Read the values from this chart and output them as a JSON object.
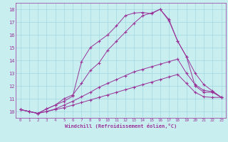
{
  "background_color": "#c8eef0",
  "grid_color": "#a0d8e0",
  "line_color": "#993399",
  "marker": "+",
  "xlim": [
    -0.5,
    23.5
  ],
  "ylim": [
    9.5,
    18.5
  ],
  "xticks": [
    0,
    1,
    2,
    3,
    4,
    5,
    6,
    7,
    8,
    9,
    10,
    11,
    12,
    13,
    14,
    15,
    16,
    17,
    18,
    19,
    20,
    21,
    22,
    23
  ],
  "yticks": [
    10,
    11,
    12,
    13,
    14,
    15,
    16,
    17,
    18
  ],
  "xlabel": "Windchill (Refroidissement éolien,°C)",
  "series": [
    [
      10.15,
      10.0,
      9.85,
      10.0,
      10.15,
      10.3,
      10.5,
      10.7,
      10.9,
      11.1,
      11.3,
      11.5,
      11.7,
      11.9,
      12.1,
      12.3,
      12.5,
      12.7,
      12.9,
      12.2,
      11.5,
      11.15,
      11.1,
      11.1
    ],
    [
      10.15,
      10.0,
      9.85,
      10.0,
      10.2,
      10.5,
      10.8,
      11.15,
      11.5,
      11.9,
      12.2,
      12.5,
      12.8,
      13.1,
      13.3,
      13.5,
      13.7,
      13.9,
      14.1,
      13.0,
      12.1,
      11.65,
      11.55,
      11.1
    ],
    [
      10.15,
      10.0,
      9.85,
      10.2,
      10.5,
      11.0,
      11.3,
      12.2,
      13.2,
      13.8,
      14.8,
      15.5,
      16.2,
      16.9,
      17.5,
      17.7,
      18.0,
      17.2,
      15.5,
      14.3,
      13.0,
      12.1,
      11.6,
      11.1
    ],
    [
      10.15,
      10.0,
      9.85,
      10.2,
      10.5,
      10.8,
      11.2,
      13.9,
      15.0,
      15.5,
      16.0,
      16.7,
      17.5,
      17.7,
      17.75,
      17.65,
      18.0,
      17.1,
      15.5,
      14.3,
      12.0,
      11.5,
      11.5,
      11.1
    ]
  ]
}
